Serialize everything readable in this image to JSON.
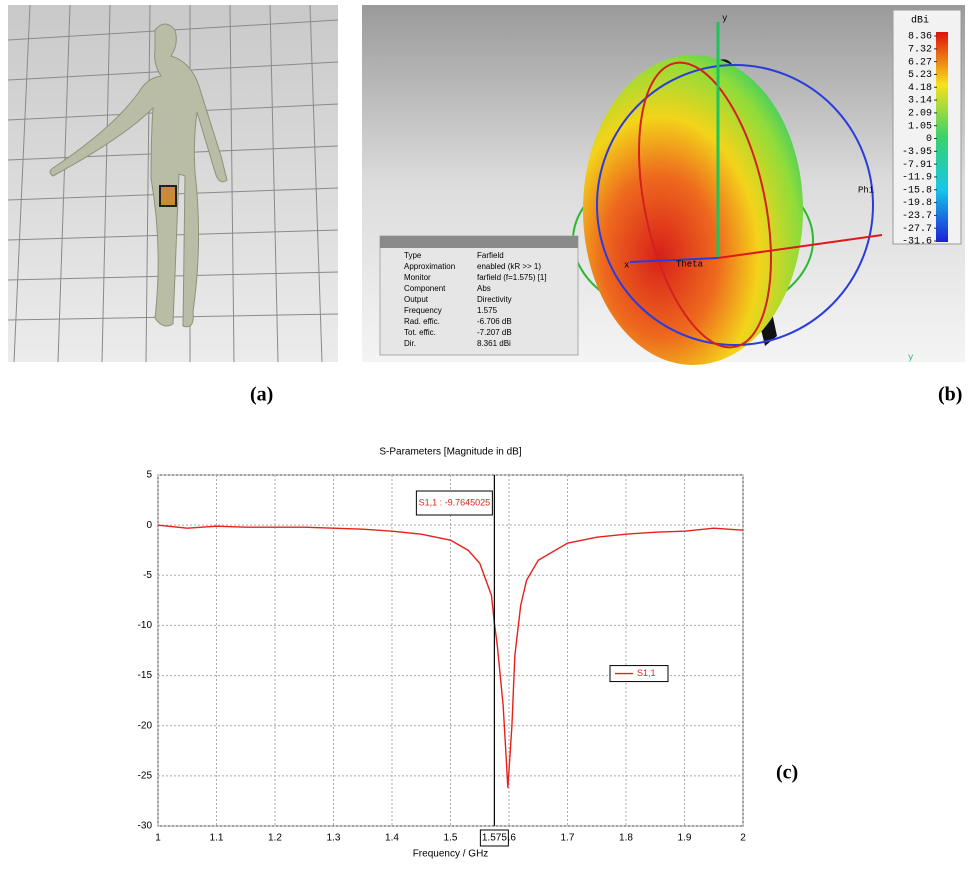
{
  "panel_labels": [
    "(a)",
    "(b)",
    "(c)"
  ],
  "farfield": {
    "colorbar_unit": "dBi",
    "colorbar_ticks": [
      8.36,
      7.32,
      6.27,
      5.23,
      4.18,
      3.14,
      2.09,
      1.05,
      0,
      -3.95,
      -7.91,
      -11.9,
      -15.8,
      -19.8,
      -23.7,
      -27.7,
      -31.6
    ],
    "axis_labels": {
      "y_top": "y",
      "phi": "Phi",
      "theta": "Theta",
      "x": "x",
      "y_corner": "y"
    },
    "info": [
      [
        "Type",
        "Farfield"
      ],
      [
        "Approximation",
        "enabled (kR >> 1)"
      ],
      [
        "Monitor",
        "farfield (f=1.575) [1]"
      ],
      [
        "Component",
        "Abs"
      ],
      [
        "Output",
        "Directivity"
      ],
      [
        "Frequency",
        "1.575"
      ],
      [
        "Rad. effic.",
        "-6.706 dB"
      ],
      [
        "Tot. effic.",
        "-7.207 dB"
      ],
      [
        "Dir.",
        "8.361 dBi"
      ]
    ]
  },
  "chart_data": {
    "type": "line",
    "title": "S-Parameters [Magnitude in dB]",
    "x_label": "Frequency / GHz",
    "x": [
      1.0,
      1.05,
      1.1,
      1.15,
      1.2,
      1.25,
      1.3,
      1.35,
      1.4,
      1.45,
      1.5,
      1.53,
      1.55,
      1.57,
      1.575,
      1.58,
      1.59,
      1.595,
      1.598,
      1.605,
      1.61,
      1.62,
      1.63,
      1.65,
      1.7,
      1.75,
      1.8,
      1.85,
      1.9,
      1.95,
      2.0
    ],
    "series": [
      {
        "name": "S1,1",
        "color": "#e8201c",
        "values": [
          0,
          -0.3,
          -0.1,
          -0.2,
          -0.2,
          -0.2,
          -0.3,
          -0.4,
          -0.6,
          -0.9,
          -1.5,
          -2.5,
          -3.8,
          -7,
          -9.76,
          -12,
          -18,
          -23,
          -26.2,
          -20,
          -13,
          -8,
          -5.5,
          -3.5,
          -1.8,
          -1.2,
          -0.9,
          -0.7,
          -0.6,
          -0.3,
          -0.5
        ]
      }
    ],
    "xlim": [
      1,
      2
    ],
    "xticks": [
      1,
      1.1,
      1.2,
      1.3,
      1.4,
      1.5,
      1.6,
      1.7,
      1.8,
      1.9,
      2
    ],
    "ylim": [
      -30,
      5
    ],
    "yticks": [
      -30,
      -25,
      -20,
      -15,
      -10,
      -5,
      0,
      5
    ],
    "grid": true,
    "legend": "right",
    "marker": {
      "x": 1.575,
      "label": "S1,1 : -9.7645025"
    }
  }
}
